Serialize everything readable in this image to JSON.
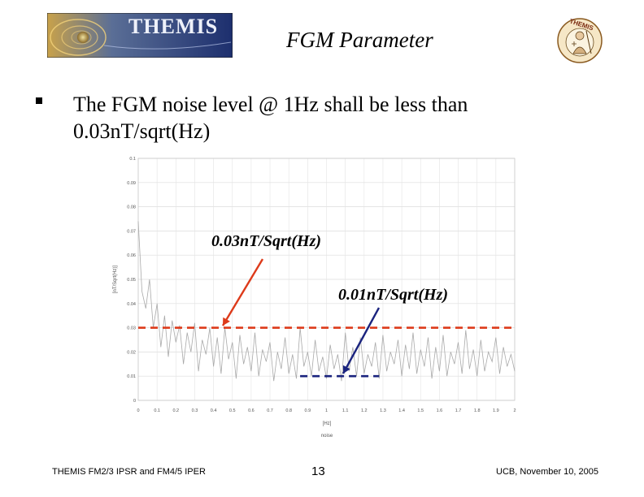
{
  "header": {
    "logo_text": "THEMIS",
    "title": "FGM Parameter",
    "mascot_text": "THEMIS"
  },
  "bullet": {
    "text_line1": "The FGM noise level @ 1Hz shall be less than",
    "text_line2": "0.03nT/sqrt(Hz)"
  },
  "annotations": {
    "upper": "0.03nT/Sqrt(Hz)",
    "lower": "0.01nT/Sqrt(Hz)"
  },
  "colors": {
    "upper_line": "#dd3a1a",
    "lower_line": "#1a237e",
    "noise_trace": "#a9a9a9"
  },
  "chart_data": {
    "type": "line",
    "title": "",
    "xlabel": "[Hz]",
    "xlabel2": "noise",
    "ylabel": "[nT/Sqrt(Hz)]",
    "xlim": [
      0,
      2
    ],
    "ylim": [
      0,
      0.1
    ],
    "x_ticks": [
      "0",
      "0.1",
      "0.2",
      "0.3",
      "0.4",
      "0.5",
      "0.6",
      "0.7",
      "0.8",
      "0.9",
      "1",
      "1.1",
      "1.2",
      "1.3",
      "1.4",
      "1.5",
      "1.6",
      "1.7",
      "1.8",
      "1.9",
      "2"
    ],
    "y_ticks": [
      "0",
      "0.01",
      "0.02",
      "0.03",
      "0.04",
      "0.05",
      "0.06",
      "0.07",
      "0.08",
      "0.09",
      "0.1"
    ],
    "reference_lines": [
      {
        "value": 0.03,
        "x_range": [
          0,
          2
        ],
        "style": "dashed"
      },
      {
        "value": 0.01,
        "x_range": [
          0.86,
          1.28
        ],
        "style": "dashed"
      }
    ],
    "series": [
      {
        "x": [
          0,
          0.02,
          0.04,
          0.06,
          0.08,
          0.1,
          0.12,
          0.14,
          0.16,
          0.18,
          0.2,
          0.22,
          0.24,
          0.26,
          0.28,
          0.3,
          0.32,
          0.34,
          0.36,
          0.38,
          0.4,
          0.42,
          0.44,
          0.46,
          0.48,
          0.5,
          0.52,
          0.54,
          0.56,
          0.58,
          0.6,
          0.62,
          0.64,
          0.66,
          0.68,
          0.7,
          0.72,
          0.74,
          0.76,
          0.78,
          0.8,
          0.82,
          0.84,
          0.86,
          0.88,
          0.9,
          0.92,
          0.94,
          0.96,
          0.98,
          1.0,
          1.02,
          1.04,
          1.06,
          1.08,
          1.1,
          1.12,
          1.14,
          1.16,
          1.18,
          1.2,
          1.22,
          1.24,
          1.26,
          1.28,
          1.3,
          1.32,
          1.34,
          1.36,
          1.38,
          1.4,
          1.42,
          1.44,
          1.46,
          1.48,
          1.5,
          1.52,
          1.54,
          1.56,
          1.58,
          1.6,
          1.62,
          1.64,
          1.66,
          1.68,
          1.7,
          1.72,
          1.74,
          1.76,
          1.78,
          1.8,
          1.82,
          1.84,
          1.86,
          1.88,
          1.9,
          1.92,
          1.94,
          1.96,
          1.98,
          2.0
        ],
        "values": [
          0.074,
          0.045,
          0.038,
          0.05,
          0.03,
          0.04,
          0.022,
          0.035,
          0.018,
          0.033,
          0.024,
          0.031,
          0.015,
          0.028,
          0.02,
          0.032,
          0.012,
          0.025,
          0.019,
          0.03,
          0.014,
          0.026,
          0.011,
          0.03,
          0.017,
          0.024,
          0.009,
          0.027,
          0.015,
          0.022,
          0.012,
          0.028,
          0.01,
          0.021,
          0.016,
          0.024,
          0.008,
          0.02,
          0.013,
          0.026,
          0.011,
          0.019,
          0.009,
          0.03,
          0.014,
          0.02,
          0.01,
          0.025,
          0.012,
          0.018,
          0.009,
          0.023,
          0.013,
          0.019,
          0.008,
          0.028,
          0.012,
          0.022,
          0.01,
          0.026,
          0.011,
          0.019,
          0.014,
          0.024,
          0.009,
          0.027,
          0.012,
          0.02,
          0.015,
          0.025,
          0.01,
          0.023,
          0.013,
          0.028,
          0.011,
          0.021,
          0.014,
          0.026,
          0.009,
          0.022,
          0.012,
          0.027,
          0.01,
          0.02,
          0.015,
          0.024,
          0.011,
          0.029,
          0.013,
          0.021,
          0.01,
          0.025,
          0.012,
          0.02,
          0.016,
          0.026,
          0.011,
          0.022,
          0.014,
          0.019,
          0.012
        ]
      }
    ]
  },
  "footer": {
    "left": "THEMIS FM2/3 IPSR and FM4/5 IPER",
    "page": "13",
    "right": "UCB, November 10, 2005"
  }
}
